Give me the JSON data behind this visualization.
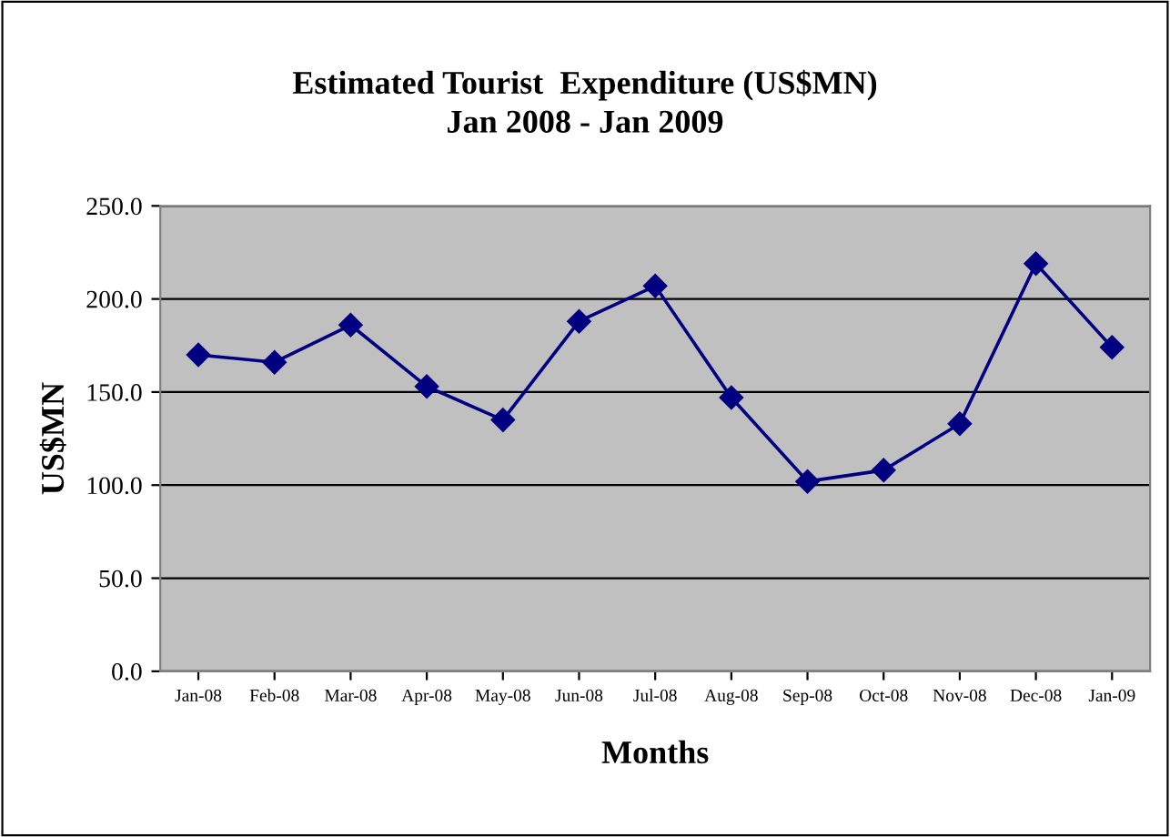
{
  "chart_data": {
    "type": "line",
    "title": "Estimated Tourist  Expenditure (US$MN)\nJan 2008 - Jan 2009",
    "xlabel": "Months",
    "ylabel": "US$MN",
    "categories": [
      "Jan-08",
      "Feb-08",
      "Mar-08",
      "Apr-08",
      "May-08",
      "Jun-08",
      "Jul-08",
      "Aug-08",
      "Sep-08",
      "Oct-08",
      "Nov-08",
      "Dec-08",
      "Jan-09"
    ],
    "series": [
      {
        "color": "#000080",
        "values": [
          170,
          166,
          186,
          153,
          135,
          188,
          207,
          147,
          102,
          108,
          133,
          219,
          174
        ]
      }
    ],
    "ylim": [
      0,
      250
    ],
    "yticks": [
      {
        "value": 0,
        "label": "0.0"
      },
      {
        "value": 50,
        "label": "50.0"
      },
      {
        "value": 100,
        "label": "100.0"
      },
      {
        "value": 150,
        "label": "150.0"
      },
      {
        "value": 200,
        "label": "200.0"
      },
      {
        "value": 250,
        "label": "250.0"
      }
    ],
    "grid": "y",
    "marker": "diamond",
    "line_style": "solid"
  }
}
